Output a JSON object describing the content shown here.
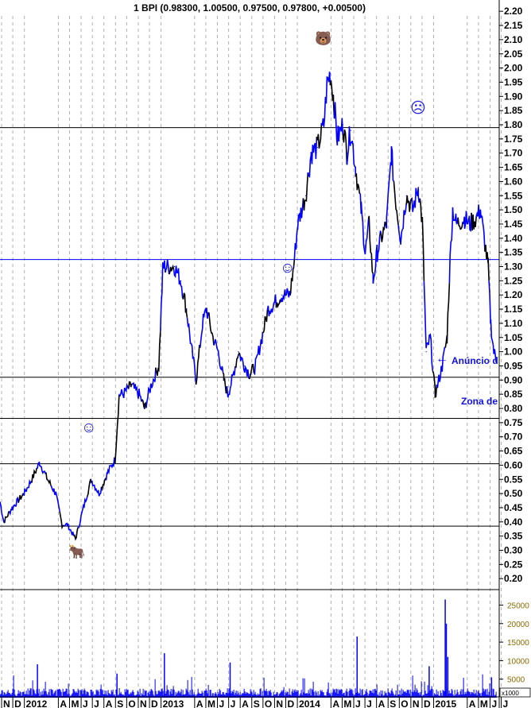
{
  "title": "1 BPI (0.98300, 1.00500, 0.97500, 0.97800, +0.00500)",
  "annotations": {
    "anuncio": "Anúncio d",
    "zona": "Zona de",
    "arrow_icon": "arrow-left-icon",
    "smiley_icons": [
      "smiley-icon",
      "smiley-icon"
    ],
    "frown_icon": "frown-icon",
    "bull_icon": "bull-icon",
    "bear_icon": "bear-icon"
  },
  "colors": {
    "price": "#0000ff",
    "price_alt": "#000000",
    "volume": "#0000ff",
    "hline": "#000000",
    "hline_blue": "#0000ff",
    "grid": "#b0b0b0",
    "vol_axis_text": "#8a6a00"
  },
  "chart_data": [
    {
      "type": "line",
      "title": "1 BPI (0.98300, 1.00500, 0.97500, 0.97800, +0.00500)",
      "ylim": [
        0.15,
        2.22
      ],
      "y_ticks": [
        "2.20",
        "2.15",
        "2.10",
        "2.05",
        "2.00",
        "1.95",
        "1.90",
        "1.85",
        "1.80",
        "1.75",
        "1.70",
        "1.65",
        "1.60",
        "1.55",
        "1.50",
        "1.45",
        "1.40",
        "1.35",
        "1.30",
        "1.25",
        "1.20",
        "1.15",
        "1.10",
        "1.05",
        "1.00",
        "0.95",
        "0.90",
        "0.85",
        "0.80",
        "0.75",
        "0.70",
        "0.65",
        "0.60",
        "0.55",
        "0.50",
        "0.45",
        "0.40",
        "0.35",
        "0.30",
        "0.25",
        "0.20"
      ],
      "x_ticks": [
        "N",
        "D",
        "2012",
        "A",
        "M",
        "J",
        "J",
        "A",
        "S",
        "O",
        "N",
        "D",
        "2013",
        "A",
        "M",
        "J",
        "J",
        "A",
        "S",
        "O",
        "N",
        "D",
        "2014",
        "A",
        "M",
        "J",
        "J",
        "A",
        "S",
        "O",
        "N",
        "D",
        "2015",
        "A",
        "M",
        "J",
        "J"
      ],
      "x_tick_dates": [
        "2011-11-01",
        "2011-12-01",
        "2012-01-01",
        "2012-04-01",
        "2012-05-01",
        "2012-06-01",
        "2012-07-01",
        "2012-08-01",
        "2012-09-01",
        "2012-10-01",
        "2012-11-01",
        "2012-12-01",
        "2013-01-01",
        "2013-04-01",
        "2013-05-01",
        "2013-06-01",
        "2013-07-01",
        "2013-08-01",
        "2013-09-01",
        "2013-10-01",
        "2013-11-01",
        "2013-12-01",
        "2014-01-01",
        "2014-04-01",
        "2014-05-01",
        "2014-06-01",
        "2014-07-01",
        "2014-08-01",
        "2014-09-01",
        "2014-10-01",
        "2014-11-01",
        "2014-12-01",
        "2015-01-01",
        "2015-04-01",
        "2015-05-01",
        "2015-06-01",
        "2015-07-01"
      ],
      "grid": "vertical dashed",
      "horizontal_lines": [
        {
          "y": 1.79,
          "color": "#000000"
        },
        {
          "y": 1.325,
          "color": "#0000ff"
        },
        {
          "y": 0.91,
          "color": "#000000"
        },
        {
          "y": 0.765,
          "color": "#000000"
        },
        {
          "y": 0.605,
          "color": "#000000"
        },
        {
          "y": 0.385,
          "color": "#000000"
        }
      ],
      "x": [
        "2011-10-28",
        "2011-11-07",
        "2011-11-29",
        "2011-12-31",
        "2012-01-21",
        "2012-02-11",
        "2012-03-03",
        "2012-03-25",
        "2012-04-11",
        "2012-04-25",
        "2012-05-17",
        "2012-06-07",
        "2012-06-28",
        "2012-07-19",
        "2012-08-10",
        "2012-08-31",
        "2012-09-11",
        "2012-09-21",
        "2012-10-13",
        "2012-11-03",
        "2012-11-18",
        "2012-12-05",
        "2012-12-26",
        "2013-01-06",
        "2013-01-16",
        "2013-02-06",
        "2013-02-23",
        "2013-03-10",
        "2013-03-25",
        "2013-04-05",
        "2013-04-22",
        "2013-05-03",
        "2013-05-20",
        "2013-06-03",
        "2013-06-18",
        "2013-06-29",
        "2013-07-10",
        "2013-07-27",
        "2013-08-13",
        "2013-08-27",
        "2013-09-11",
        "2013-09-28",
        "2013-10-15",
        "2013-10-30",
        "2013-11-20",
        "2013-12-12",
        "2013-12-22",
        "2014-01-02",
        "2014-01-23",
        "2014-02-07",
        "2014-02-24",
        "2014-03-13",
        "2014-03-22",
        "2014-03-30",
        "2014-04-08",
        "2014-04-18",
        "2014-05-03",
        "2014-05-14",
        "2014-05-24",
        "2014-06-06",
        "2014-06-21",
        "2014-07-02",
        "2014-07-12",
        "2014-07-23",
        "2014-08-03",
        "2014-08-13",
        "2014-08-28",
        "2014-09-10",
        "2014-09-20",
        "2014-10-05",
        "2014-10-20",
        "2014-11-06",
        "2014-11-21",
        "2014-12-02",
        "2014-12-12",
        "2014-12-23",
        "2015-01-05",
        "2015-01-15",
        "2015-01-24",
        "2015-02-06",
        "2015-02-14",
        "2015-02-21",
        "2015-03-03",
        "2015-03-25",
        "2015-04-08",
        "2015-04-25",
        "2015-05-06",
        "2015-05-16",
        "2015-05-27",
        "2015-06-03",
        "2015-06-11",
        "2015-06-18"
      ],
      "values": [
        0.47,
        0.4,
        0.45,
        0.5,
        0.55,
        0.61,
        0.55,
        0.5,
        0.39,
        0.39,
        0.34,
        0.45,
        0.55,
        0.5,
        0.57,
        0.62,
        0.85,
        0.85,
        0.88,
        0.85,
        0.8,
        0.88,
        0.95,
        1.3,
        1.3,
        1.3,
        1.25,
        1.15,
        1.0,
        0.9,
        1.1,
        1.15,
        1.05,
        1.0,
        0.9,
        0.85,
        0.9,
        1.0,
        0.95,
        0.92,
        0.95,
        1.05,
        1.15,
        1.17,
        1.2,
        1.2,
        1.3,
        1.45,
        1.55,
        1.7,
        1.72,
        1.8,
        1.95,
        1.98,
        1.9,
        1.75,
        1.8,
        1.7,
        1.78,
        1.65,
        1.5,
        1.35,
        1.45,
        1.25,
        1.35,
        1.4,
        1.45,
        1.7,
        1.55,
        1.4,
        1.55,
        1.5,
        1.58,
        1.45,
        1.0,
        1.05,
        0.85,
        0.9,
        0.95,
        1.05,
        1.32,
        1.5,
        1.45,
        1.47,
        1.45,
        1.47,
        1.5,
        1.4,
        1.3,
        1.1,
        1.0,
        0.97
      ]
    },
    {
      "type": "bar",
      "ylim": [
        0,
        27000
      ],
      "y_ticks": [
        "25000",
        "20000",
        "15000",
        "10000",
        "5000"
      ],
      "unit_label": "x1000",
      "baseline": 1500,
      "spikes": [
        {
          "x": "2012-02-05",
          "value": 9000
        },
        {
          "x": "2012-09-05",
          "value": 6500
        },
        {
          "x": "2013-01-10",
          "value": 12000
        },
        {
          "x": "2013-07-05",
          "value": 9500
        },
        {
          "x": "2014-06-10",
          "value": 16500
        },
        {
          "x": "2014-12-20",
          "value": 8500
        },
        {
          "x": "2015-02-01",
          "value": 26500
        },
        {
          "x": "2015-02-04",
          "value": 20000
        },
        {
          "x": "2015-02-08",
          "value": 11000
        },
        {
          "x": "2015-06-05",
          "value": 5500
        }
      ]
    }
  ]
}
